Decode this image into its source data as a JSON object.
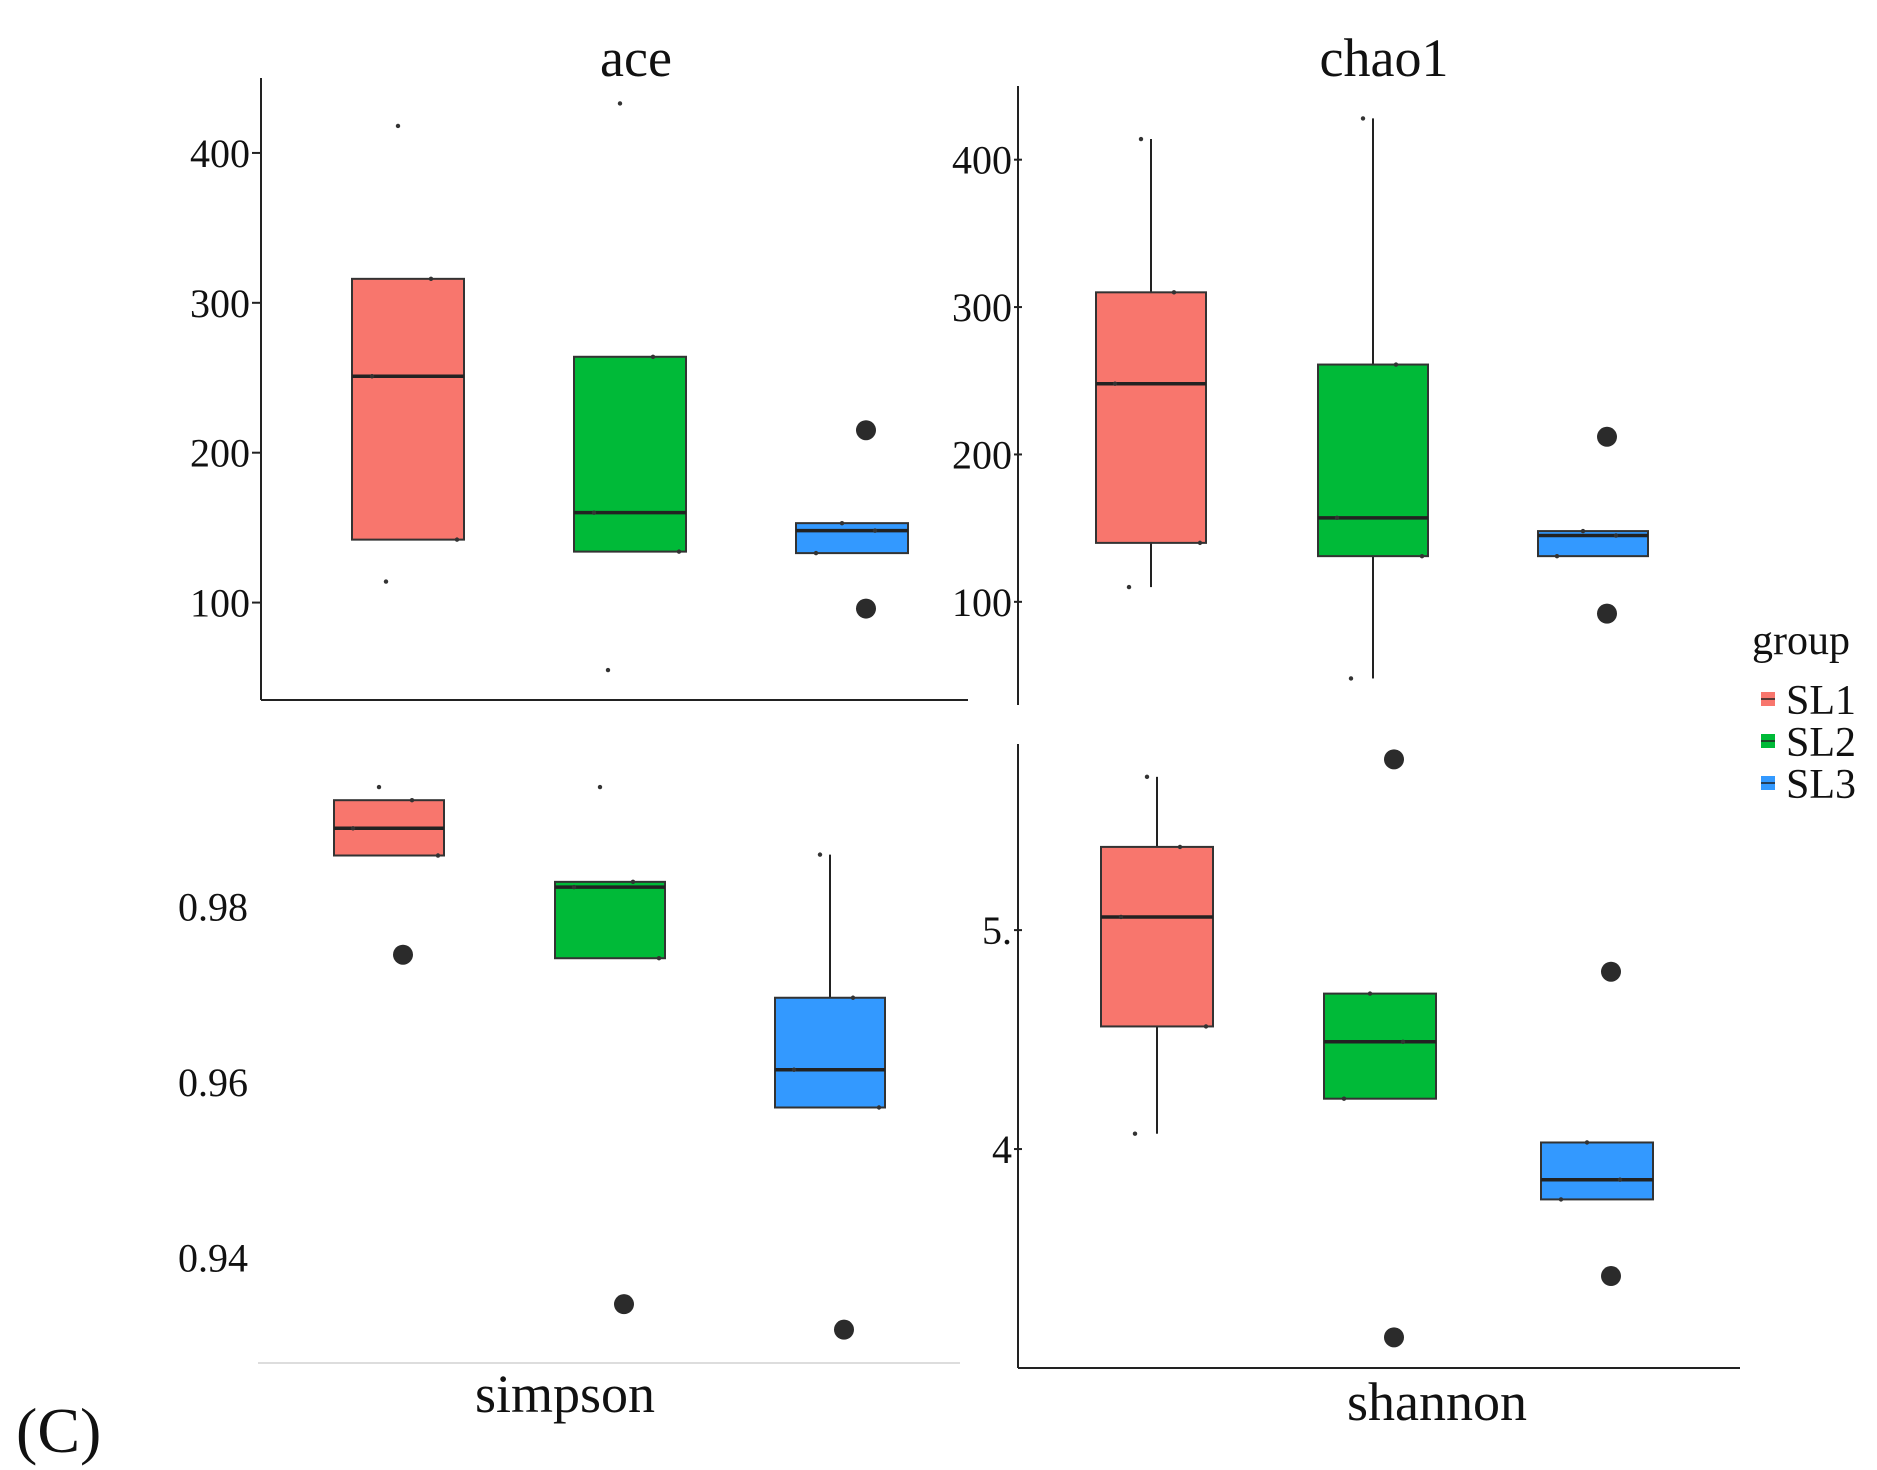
{
  "figure_label": "(C)",
  "legend": {
    "title": "group",
    "items": [
      {
        "label": "SL1",
        "color": "#F8766D"
      },
      {
        "label": "SL2",
        "color": "#00BA38"
      },
      {
        "label": "SL3",
        "color": "#3399FF"
      }
    ]
  },
  "chart_data": [
    {
      "type": "boxplot",
      "title": "ace",
      "ylim": [
        35,
        450
      ],
      "yticks": [
        100,
        200,
        300,
        400
      ],
      "ytick_labels": [
        "100",
        "200",
        "300",
        "400"
      ],
      "groups": [
        {
          "name": "SL1",
          "color": "#F8766D",
          "q1": 142,
          "median": 251,
          "q3": 316,
          "whisker_low": 142,
          "whisker_high": 316,
          "points": [
            418,
            316,
            251,
            142,
            114
          ],
          "outliers": []
        },
        {
          "name": "SL2",
          "color": "#00BA38",
          "q1": 134,
          "median": 160,
          "q3": 264,
          "whisker_low": 134,
          "whisker_high": 264,
          "points": [
            433,
            264,
            160,
            134,
            55
          ],
          "outliers": []
        },
        {
          "name": "SL3",
          "color": "#3399FF",
          "q1": 133,
          "median": 148,
          "q3": 153,
          "whisker_low": 133,
          "whisker_high": 153,
          "points": [
            153,
            148,
            133
          ],
          "outliers": [
            215,
            96
          ]
        }
      ]
    },
    {
      "type": "boxplot",
      "title": "chao1",
      "ylim": [
        30,
        450
      ],
      "yticks": [
        100,
        200,
        300,
        400
      ],
      "ytick_labels": [
        "100",
        "200",
        "300",
        "400"
      ],
      "groups": [
        {
          "name": "SL1",
          "color": "#F8766D",
          "q1": 140,
          "median": 248,
          "q3": 310,
          "whisker_low": 110,
          "whisker_high": 414,
          "points": [
            414,
            310,
            248,
            140,
            110
          ],
          "outliers": []
        },
        {
          "name": "SL2",
          "color": "#00BA38",
          "q1": 131,
          "median": 157,
          "q3": 261,
          "whisker_low": 48,
          "whisker_high": 428,
          "points": [
            428,
            261,
            157,
            131,
            48
          ],
          "outliers": []
        },
        {
          "name": "SL3",
          "color": "#3399FF",
          "q1": 131,
          "median": 145,
          "q3": 148,
          "whisker_low": 131,
          "whisker_high": 148,
          "points": [
            148,
            145,
            131
          ],
          "outliers": [
            212,
            92
          ]
        }
      ]
    },
    {
      "type": "boxplot",
      "title": "simpson",
      "ylim": [
        0.928,
        0.9985
      ],
      "yticks": [
        0.94,
        0.96,
        0.98
      ],
      "ytick_labels": [
        "0.94",
        "0.96",
        "0.98"
      ],
      "groups": [
        {
          "name": "SL1",
          "color": "#F8766D",
          "q1": 0.9858,
          "median": 0.9889,
          "q3": 0.9921,
          "whisker_low": 0.9858,
          "whisker_high": 0.9921,
          "points": [
            0.9936,
            0.9921,
            0.9889,
            0.9858
          ],
          "outliers": [
            0.9745
          ]
        },
        {
          "name": "SL2",
          "color": "#00BA38",
          "q1": 0.9741,
          "median": 0.9822,
          "q3": 0.9828,
          "whisker_low": 0.9741,
          "whisker_high": 0.9828,
          "points": [
            0.9936,
            0.9828,
            0.9822,
            0.9741
          ],
          "outliers": [
            0.9347
          ]
        },
        {
          "name": "SL3",
          "color": "#3399FF",
          "q1": 0.9571,
          "median": 0.9614,
          "q3": 0.9696,
          "whisker_low": 0.9571,
          "whisker_high": 0.9859,
          "points": [
            0.9859,
            0.9696,
            0.9614,
            0.9571
          ],
          "outliers": [
            0.9318
          ]
        }
      ]
    },
    {
      "type": "boxplot",
      "title": "shannon",
      "ylim": [
        3.0,
        5.85
      ],
      "yticks": [
        4,
        5
      ],
      "ytick_labels": [
        "4",
        "5."
      ],
      "groups": [
        {
          "name": "SL1",
          "color": "#F8766D",
          "q1": 4.56,
          "median": 5.06,
          "q3": 5.38,
          "whisker_low": 4.07,
          "whisker_high": 5.7,
          "points": [
            5.7,
            5.38,
            5.06,
            4.56,
            4.07
          ],
          "outliers": []
        },
        {
          "name": "SL2",
          "color": "#00BA38",
          "q1": 4.23,
          "median": 4.49,
          "q3": 4.71,
          "whisker_low": 4.23,
          "whisker_high": 4.71,
          "points": [
            4.71,
            4.49,
            4.23
          ],
          "outliers": [
            5.78,
            3.14
          ]
        },
        {
          "name": "SL3",
          "color": "#3399FF",
          "q1": 3.77,
          "median": 3.86,
          "q3": 4.03,
          "whisker_low": 3.77,
          "whisker_high": 4.03,
          "points": [
            4.03,
            3.86,
            3.77
          ],
          "outliers": [
            4.81,
            3.42
          ]
        }
      ]
    }
  ]
}
